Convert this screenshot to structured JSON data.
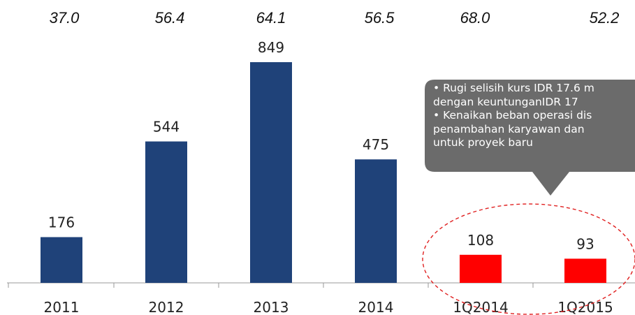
{
  "chart_data": {
    "type": "bar",
    "categories": [
      "2011",
      "2012",
      "2013",
      "2014",
      "1Q2014",
      "1Q2015"
    ],
    "values": [
      176,
      544,
      849,
      475,
      108,
      93
    ],
    "top_values": [
      "37.0",
      "56.4",
      "64.1",
      "56.5",
      "68.0",
      "52.2"
    ],
    "ylim": [
      0,
      900
    ],
    "grid": false,
    "legend": "none",
    "colors": {
      "annual_bar": "#1f4279",
      "quarter_bar": "#ff0000",
      "callout_bg": "#6b6b6b",
      "highlight_ellipse": "#e02020",
      "axis": "#999999"
    },
    "callout": {
      "lines": [
        "• Rugi selisih kurs IDR 17.6 m",
        "  dengan  keuntunganIDR 17",
        "• Kenaikan beban operasi dis",
        "  penambahan karyawan dan",
        "  untuk proyek baru"
      ]
    }
  }
}
